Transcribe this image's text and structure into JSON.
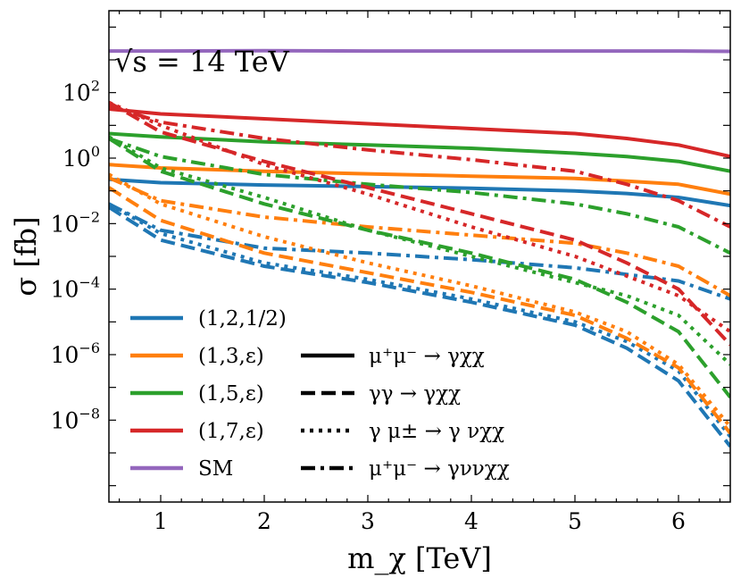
{
  "chart_data": {
    "type": "line",
    "title": "",
    "annotation": "√s = 14 TeV",
    "xlabel": "m_χ [TeV]",
    "ylabel": "σ [fb]",
    "xlim": [
      0.5,
      6.5
    ],
    "ylim_log10": [
      -10.5,
      4.5
    ],
    "yscale": "log",
    "x_ticks": [
      1,
      2,
      3,
      4,
      5,
      6
    ],
    "x_tick_labels": [
      "1",
      "2",
      "3",
      "4",
      "5",
      "6"
    ],
    "y_ticks_log10": [
      -8,
      -6,
      -4,
      -2,
      0,
      2
    ],
    "y_tick_labels": [
      "10^-8",
      "10^-6",
      "10^-4",
      "10^-2",
      "10^0",
      "10^2"
    ],
    "x": [
      0.5,
      1,
      2,
      3,
      4,
      5,
      5.5,
      6,
      6.5
    ],
    "models": [
      {
        "name": "(1,2,1/2)",
        "color": "#1f77b4"
      },
      {
        "name": "(1,3,ε)",
        "color": "#ff7f0e"
      },
      {
        "name": "(1,5,ε)",
        "color": "#2ca02c"
      },
      {
        "name": "(1,7,ε)",
        "color": "#d62728"
      },
      {
        "name": "SM",
        "color": "#9467bd"
      }
    ],
    "processes": [
      {
        "name": "μ⁺μ⁻ → γχχ",
        "style": "solid"
      },
      {
        "name": "γγ → γχχ",
        "style": "dashed"
      },
      {
        "name": "γ μ± → γ νχχ",
        "style": "dotted"
      },
      {
        "name": "μ⁺μ⁻ → γννχχ",
        "style": "dashdot"
      }
    ],
    "series": [
      {
        "name": "(1,2,1/2) μ⁺μ⁻ → γχχ",
        "model": 0,
        "style": "solid",
        "log10_values": [
          -0.65,
          -0.75,
          -0.82,
          -0.87,
          -0.92,
          -1.0,
          -1.08,
          -1.2,
          -1.45
        ]
      },
      {
        "name": "(1,2,1/2) γγ → γχχ",
        "model": 0,
        "style": "dashed",
        "log10_values": [
          -1.5,
          -2.5,
          -3.3,
          -3.8,
          -4.4,
          -5.1,
          -5.8,
          -6.8,
          -8.8
        ]
      },
      {
        "name": "(1,2,1/2) γ μ± → γ νχχ",
        "model": 0,
        "style": "dotted",
        "log10_values": [
          -1.4,
          -2.3,
          -3.2,
          -3.7,
          -4.3,
          -5.0,
          -5.6,
          -6.5,
          -8.5
        ]
      },
      {
        "name": "(1,2,1/2) μ⁺μ⁻ → γννχχ",
        "model": 0,
        "style": "dashdot",
        "log10_values": [
          -1.4,
          -2.2,
          -2.75,
          -2.9,
          -3.1,
          -3.35,
          -3.55,
          -3.75,
          -4.3
        ]
      },
      {
        "name": "(1,3,ε) μ⁺μ⁻ → γχχ",
        "model": 1,
        "style": "solid",
        "log10_values": [
          -0.2,
          -0.3,
          -0.4,
          -0.48,
          -0.55,
          -0.62,
          -0.7,
          -0.8,
          -1.1
        ]
      },
      {
        "name": "(1,3,ε) γγ → γχχ",
        "model": 1,
        "style": "dashed",
        "log10_values": [
          -0.9,
          -1.9,
          -2.9,
          -3.5,
          -4.1,
          -4.8,
          -5.5,
          -6.4,
          -8.4
        ]
      },
      {
        "name": "(1,3,ε) γ μ± → γ νχχ",
        "model": 1,
        "style": "dotted",
        "log10_values": [
          -0.5,
          -1.4,
          -2.4,
          -3.2,
          -3.9,
          -4.7,
          -5.3,
          -6.3,
          -8.2
        ]
      },
      {
        "name": "(1,3,ε) μ⁺μ⁻ → γννχχ",
        "model": 1,
        "style": "dashdot",
        "log10_values": [
          -0.6,
          -1.3,
          -1.8,
          -2.1,
          -2.35,
          -2.6,
          -2.9,
          -3.3,
          -4.2
        ]
      },
      {
        "name": "(1,5,ε) μ⁺μ⁻ → γχχ",
        "model": 2,
        "style": "solid",
        "log10_values": [
          0.75,
          0.65,
          0.5,
          0.4,
          0.3,
          0.15,
          0.05,
          -0.1,
          -0.4
        ]
      },
      {
        "name": "(1,5,ε) γγ → γχχ",
        "model": 2,
        "style": "dashed",
        "log10_values": [
          0.6,
          -0.4,
          -1.4,
          -2.2,
          -2.9,
          -3.7,
          -4.4,
          -5.3,
          -7.3
        ]
      },
      {
        "name": "(1,5,ε) γ μ± → γ νχχ",
        "model": 2,
        "style": "dotted",
        "log10_values": [
          0.65,
          -0.3,
          -1.2,
          -2.2,
          -3.0,
          -3.8,
          -4.2,
          -4.8,
          -6.3
        ]
      },
      {
        "name": "(1,5,ε) μ⁺μ⁻ → γννχχ",
        "model": 2,
        "style": "dashdot",
        "log10_values": [
          0.6,
          0.05,
          -0.5,
          -0.8,
          -1.05,
          -1.4,
          -1.7,
          -2.1,
          -2.9
        ]
      },
      {
        "name": "(1,7,ε) μ⁺μ⁻ → γχχ",
        "model": 3,
        "style": "solid",
        "log10_values": [
          1.5,
          1.35,
          1.2,
          1.05,
          0.9,
          0.75,
          0.6,
          0.4,
          0.05
        ]
      },
      {
        "name": "(1,7,ε) γγ → γχχ",
        "model": 3,
        "style": "dashed",
        "log10_values": [
          1.7,
          0.8,
          -0.1,
          -0.9,
          -1.7,
          -2.5,
          -3.2,
          -4.0,
          -5.7
        ]
      },
      {
        "name": "(1,7,ε) γ μ± → γ νχχ",
        "model": 3,
        "style": "dotted",
        "log10_values": [
          1.7,
          1.0,
          -0.2,
          -1.1,
          -2.1,
          -3.0,
          -3.6,
          -4.2,
          -5.3
        ]
      },
      {
        "name": "(1,7,ε) μ⁺μ⁻ → γννχχ",
        "model": 3,
        "style": "dashdot",
        "log10_values": [
          1.6,
          1.1,
          0.6,
          0.25,
          -0.05,
          -0.4,
          -0.8,
          -1.3,
          -2.1
        ]
      },
      {
        "name": "SM",
        "model": 4,
        "style": "solid",
        "log10_values": [
          3.27,
          3.27,
          3.28,
          3.27,
          3.27,
          3.27,
          3.27,
          3.27,
          3.26
        ]
      }
    ]
  }
}
